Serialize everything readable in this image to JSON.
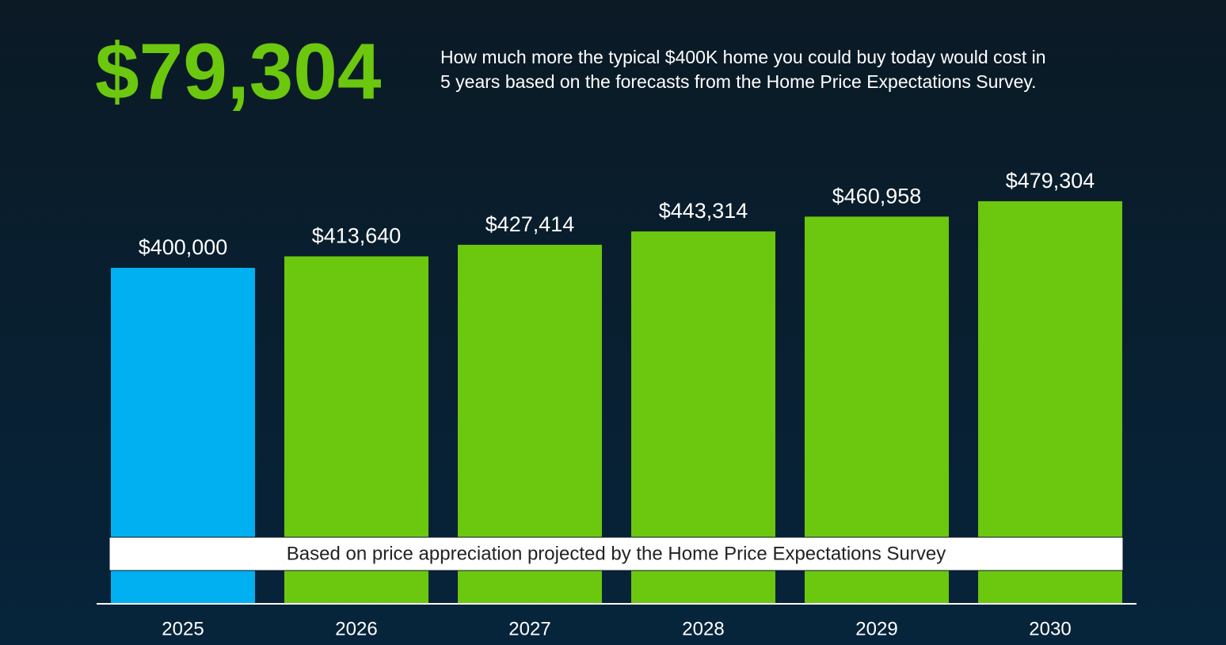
{
  "chart_data": {
    "type": "bar",
    "headline": "$79,304",
    "description": [
      "How much more the typical $400K home you could buy today would cost in",
      "5 years based on the forecasts from the Home Price Expectations Survey."
    ],
    "annotation": "Based on price appreciation projected by the Home Price Expectations Survey",
    "categories": [
      "2025",
      "2026",
      "2027",
      "2028",
      "2029",
      "2030"
    ],
    "values": [
      400000,
      413640,
      427414,
      443314,
      460958,
      479304
    ],
    "value_labels": [
      "$400,000",
      "$413,640",
      "$427,414",
      "$443,314",
      "$460,958",
      "$479,304"
    ],
    "colors": [
      "#00b0f0",
      "#6cc70f",
      "#6cc70f",
      "#6cc70f",
      "#6cc70f",
      "#6cc70f"
    ],
    "ylim": [
      0,
      500000
    ]
  }
}
